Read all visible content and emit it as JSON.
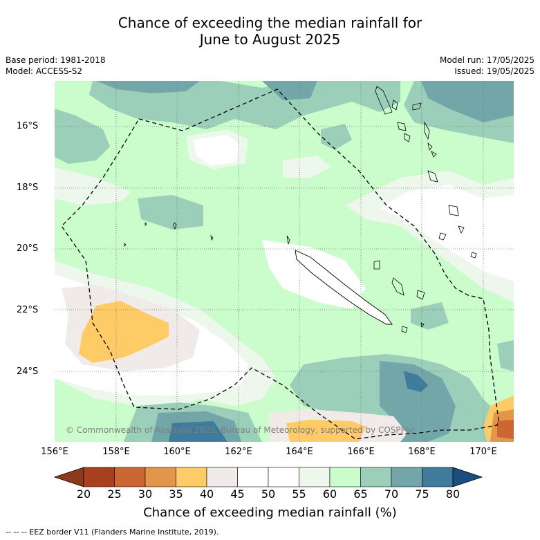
{
  "title_line1": "Chance of exceeding the median rainfall for",
  "title_line2": "June to August 2025",
  "base_period": "Base period: 1981-2018",
  "model": "Model: ACCESS-S2",
  "model_run": "Model run: 17/05/2025",
  "issued": "Issued: 19/05/2025",
  "copyright": "© Commonwealth of Australia 2025, Bureau of Meteorology, supported by COSPPac",
  "lat_labels": [
    "16°S",
    "18°S",
    "20°S",
    "22°S",
    "24°S"
  ],
  "lon_labels": [
    "156°E",
    "158°E",
    "160°E",
    "162°E",
    "164°E",
    "166°E",
    "168°E",
    "170°E"
  ],
  "colorbar": {
    "ticks": [
      "20",
      "25",
      "30",
      "35",
      "40",
      "45",
      "50",
      "55",
      "60",
      "65",
      "70",
      "75",
      "80"
    ],
    "colors": [
      "#a8401f",
      "#cc6633",
      "#e3954a",
      "#fecb66",
      "#f0ebe8",
      "#ffffff",
      "#ffffff",
      "#edf7ec",
      "#cbfccb",
      "#9ccfba",
      "#72a6a9",
      "#3f7b9b"
    ],
    "under_color": "#8b3a1c",
    "over_color": "#1a4e80",
    "label": "Chance of exceeding median rainfall (%)"
  },
  "footnote": "--  --  -- EEZ border V11 (Flanders Marine Institute, 2019)."
}
